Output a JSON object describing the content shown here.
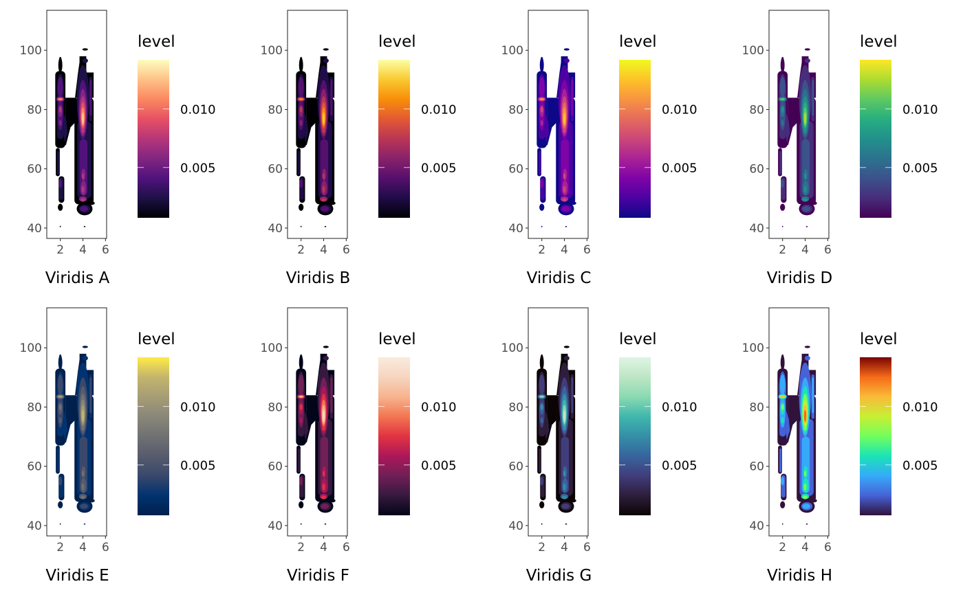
{
  "chart_data": [
    {
      "type": "heatmap",
      "subtype": "filled-density-contour",
      "title": "Viridis A",
      "palette_option": "A",
      "palette": [
        "#000004",
        "#1d1147",
        "#51127c",
        "#822681",
        "#b63679",
        "#e65164",
        "#fb8861",
        "#fec287",
        "#fcfdbf"
      ],
      "xlabel": "",
      "ylabel": "",
      "xticks": [
        2,
        4,
        6
      ],
      "yticks": [
        40,
        60,
        80,
        100
      ],
      "xlim": [
        0.8,
        6.1
      ],
      "ylim": [
        36.5,
        113.5
      ],
      "legend": {
        "title": "level",
        "ticks": [
          "0.005",
          "0.010"
        ],
        "tick_values": [
          0.005,
          0.01
        ],
        "range": [
          0.0007,
          0.0142
        ],
        "placement": "right"
      }
    },
    {
      "type": "heatmap",
      "subtype": "filled-density-contour",
      "title": "Viridis B",
      "palette_option": "B",
      "palette": [
        "#000004",
        "#1f0c48",
        "#550f6d",
        "#88226a",
        "#ba3655",
        "#e35933",
        "#f98e09",
        "#f9c932",
        "#fcffa4"
      ],
      "xlabel": "",
      "ylabel": "",
      "xticks": [
        2,
        4,
        6
      ],
      "yticks": [
        40,
        60,
        80,
        100
      ],
      "xlim": [
        0.8,
        6.1
      ],
      "ylim": [
        36.5,
        113.5
      ],
      "legend": {
        "title": "level",
        "ticks": [
          "0.005",
          "0.010"
        ],
        "tick_values": [
          0.005,
          0.01
        ],
        "range": [
          0.0007,
          0.0142
        ],
        "placement": "right"
      }
    },
    {
      "type": "heatmap",
      "subtype": "filled-density-contour",
      "title": "Viridis C",
      "palette_option": "C",
      "palette": [
        "#0d0887",
        "#4c02a1",
        "#7e03a8",
        "#a92395",
        "#cc4778",
        "#e56b5d",
        "#f89441",
        "#fdc328",
        "#f0f921"
      ],
      "xlabel": "",
      "ylabel": "",
      "xticks": [
        2,
        4,
        6
      ],
      "yticks": [
        40,
        60,
        80,
        100
      ],
      "xlim": [
        0.8,
        6.1
      ],
      "ylim": [
        36.5,
        113.5
      ],
      "legend": {
        "title": "level",
        "ticks": [
          "0.005",
          "0.010"
        ],
        "tick_values": [
          0.005,
          0.01
        ],
        "range": [
          0.0007,
          0.0142
        ],
        "placement": "right"
      }
    },
    {
      "type": "heatmap",
      "subtype": "filled-density-contour",
      "title": "Viridis D",
      "palette_option": "D",
      "palette": [
        "#440154",
        "#472d7b",
        "#3b528b",
        "#2c728e",
        "#21918c",
        "#28ae80",
        "#5ec962",
        "#addc30",
        "#fde725"
      ],
      "xlabel": "",
      "ylabel": "",
      "xticks": [
        2,
        4,
        6
      ],
      "yticks": [
        40,
        60,
        80,
        100
      ],
      "xlim": [
        0.8,
        6.1
      ],
      "ylim": [
        36.5,
        113.5
      ],
      "legend": {
        "title": "level",
        "ticks": [
          "0.005",
          "0.010"
        ],
        "tick_values": [
          0.005,
          0.01
        ],
        "range": [
          0.0007,
          0.0142
        ],
        "placement": "right"
      }
    },
    {
      "type": "heatmap",
      "subtype": "filled-density-contour",
      "title": "Viridis E",
      "palette_option": "E",
      "palette": [
        "#00204d",
        "#00336f",
        "#39486b",
        "#575c6d",
        "#707173",
        "#8a8779",
        "#a69d75",
        "#c4b56c",
        "#ffea46"
      ],
      "xlabel": "",
      "ylabel": "",
      "xticks": [
        2,
        4,
        6
      ],
      "yticks": [
        40,
        60,
        80,
        100
      ],
      "xlim": [
        0.8,
        6.1
      ],
      "ylim": [
        36.5,
        113.5
      ],
      "legend": {
        "title": "level",
        "ticks": [
          "0.005",
          "0.010"
        ],
        "tick_values": [
          0.005,
          0.01
        ],
        "range": [
          0.0007,
          0.0142
        ],
        "placement": "right"
      }
    },
    {
      "type": "heatmap",
      "subtype": "filled-density-contour",
      "title": "Viridis F",
      "palette_option": "F",
      "palette": [
        "#03051a",
        "#36193e",
        "#701f57",
        "#ad1759",
        "#e13342",
        "#f37651",
        "#f6b48e",
        "#f6d5c0",
        "#faebdd"
      ],
      "xlabel": "",
      "ylabel": "",
      "xticks": [
        2,
        4,
        6
      ],
      "yticks": [
        40,
        60,
        80,
        100
      ],
      "xlim": [
        0.8,
        6.1
      ],
      "ylim": [
        36.5,
        113.5
      ],
      "legend": {
        "title": "level",
        "ticks": [
          "0.005",
          "0.010"
        ],
        "tick_values": [
          0.005,
          0.01
        ],
        "range": [
          0.0007,
          0.0142
        ],
        "placement": "right"
      }
    },
    {
      "type": "heatmap",
      "subtype": "filled-density-contour",
      "title": "Viridis G",
      "palette_option": "G",
      "palette": [
        "#0b0405",
        "#2e1e3c",
        "#413d7b",
        "#37659e",
        "#348fa7",
        "#40b7ad",
        "#8bdab2",
        "#bde6c5",
        "#def5e5"
      ],
      "xlabel": "",
      "ylabel": "",
      "xticks": [
        2,
        4,
        6
      ],
      "yticks": [
        40,
        60,
        80,
        100
      ],
      "xlim": [
        0.8,
        6.1
      ],
      "ylim": [
        36.5,
        113.5
      ],
      "legend": {
        "title": "level",
        "ticks": [
          "0.005",
          "0.010"
        ],
        "tick_values": [
          0.005,
          0.01
        ],
        "range": [
          0.0007,
          0.0142
        ],
        "placement": "right"
      }
    },
    {
      "type": "heatmap",
      "subtype": "filled-density-contour",
      "title": "Viridis H",
      "palette_option": "H",
      "palette": [
        "#30123b",
        "#4662d7",
        "#36aaf9",
        "#1ae4b6",
        "#72fe5e",
        "#c7ef34",
        "#faba39",
        "#f66b19",
        "#7a0403"
      ],
      "xlabel": "",
      "ylabel": "",
      "xticks": [
        2,
        4,
        6
      ],
      "yticks": [
        40,
        60,
        80,
        100
      ],
      "xlim": [
        0.8,
        6.1
      ],
      "ylim": [
        36.5,
        113.5
      ],
      "legend": {
        "title": "level",
        "ticks": [
          "0.005",
          "0.010"
        ],
        "tick_values": [
          0.005,
          0.01
        ],
        "range": [
          0.0007,
          0.0142
        ],
        "placement": "right"
      }
    }
  ]
}
